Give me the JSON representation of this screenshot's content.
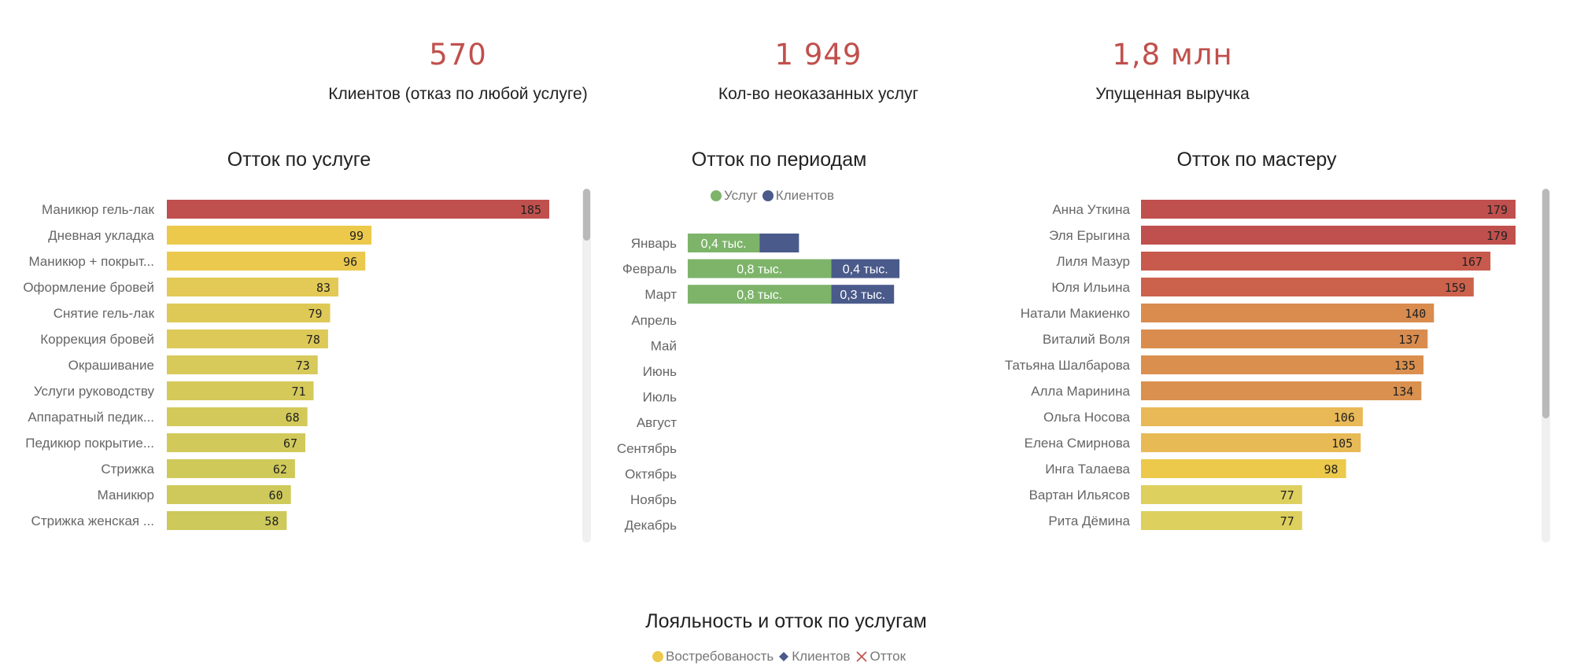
{
  "kpis": [
    {
      "value": "570",
      "label": "Клиентов (отказ по любой услуге)"
    },
    {
      "value": "1 949",
      "label": "Кол-во неоказанных услуг"
    },
    {
      "value": "1,8 млн",
      "label": "Упущенная выручка"
    }
  ],
  "colors": {
    "accent": "#c0504d",
    "green": "#7db46a",
    "navy": "#4a5a8a",
    "yellow": "#ecc94b",
    "olive": "#cfc95a",
    "orange": "#d98c4e",
    "red": "#c0504d"
  },
  "chart_data": [
    {
      "type": "bar",
      "orientation": "horizontal",
      "title": "Отток по услуге",
      "categories": [
        "Маникюр гель-лак",
        "Дневная укладка",
        "Маникюр + покрыт...",
        "Оформление бровей",
        "Снятие гель-лак",
        "Коррекция бровей",
        "Окрашивание",
        "Услуги руководству",
        "Аппаратный педик...",
        "Педикюр покрытие...",
        "Стрижка",
        "Маникюр",
        "Стрижка женская ..."
      ],
      "values": [
        185,
        99,
        96,
        83,
        79,
        78,
        73,
        71,
        68,
        67,
        62,
        60,
        58
      ],
      "colors": [
        "#c0504d",
        "#ecc94b",
        "#ebc94f",
        "#e3c955",
        "#dec957",
        "#ddc958",
        "#d7c95a",
        "#d5c95a",
        "#d2c95a",
        "#d1c95a",
        "#cfc95a",
        "#cec95a",
        "#cdc95a"
      ],
      "xlim": [
        0,
        185
      ]
    },
    {
      "type": "bar",
      "orientation": "horizontal",
      "stacked": true,
      "title": "Отток по периодам",
      "legend": [
        "Услуг",
        "Клиентов"
      ],
      "categories": [
        "Январь",
        "Февраль",
        "Март",
        "Апрель",
        "Май",
        "Июнь",
        "Июль",
        "Август",
        "Сентябрь",
        "Октябрь",
        "Ноябрь",
        "Декабрь"
      ],
      "series": [
        {
          "name": "Услуг",
          "values": [
            0.4,
            0.8,
            0.8,
            0,
            0,
            0,
            0,
            0,
            0,
            0,
            0,
            0
          ],
          "labels": [
            "0,4 тыс.",
            "0,8 тыс.",
            "0,8 тыс.",
            "",
            "",
            "",
            "",
            "",
            "",
            "",
            "",
            ""
          ],
          "color": "#7db46a"
        },
        {
          "name": "Клиентов",
          "values": [
            0.22,
            0.38,
            0.35,
            0,
            0,
            0,
            0,
            0,
            0,
            0,
            0,
            0
          ],
          "labels": [
            "",
            "0,4 тыс.",
            "0,3 тыс.",
            "",
            "",
            "",
            "",
            "",
            "",
            "",
            "",
            ""
          ],
          "color": "#4a5a8a"
        }
      ]
    },
    {
      "type": "bar",
      "orientation": "horizontal",
      "title": "Отток по мастеру",
      "categories": [
        "Анна Уткина",
        "Эля Ерыгина",
        "Лиля Мазур",
        "Юля Ильина",
        "Натали Макиенко",
        "Виталий Воля",
        "Татьяна Шалбарова",
        "Алла Маринина",
        "Ольга Носова",
        "Елена Смирнова",
        "Инга Талаева",
        "Вартан Ильясов",
        "Рита Дёмина"
      ],
      "values": [
        179,
        179,
        167,
        159,
        140,
        137,
        135,
        134,
        106,
        105,
        98,
        77,
        77
      ],
      "colors": [
        "#c0504d",
        "#c0504d",
        "#c75a4c",
        "#cc624c",
        "#d98c4e",
        "#d98c4e",
        "#da8f4e",
        "#da904e",
        "#e8b956",
        "#e8ba56",
        "#ecc94b",
        "#ddd05e",
        "#ddd05e"
      ],
      "xlim": [
        0,
        179
      ]
    },
    {
      "type": "scatter",
      "title": "Лояльность и отток по услугам",
      "legend": [
        "Востребованость",
        "Клиентов",
        "Отток"
      ]
    }
  ]
}
